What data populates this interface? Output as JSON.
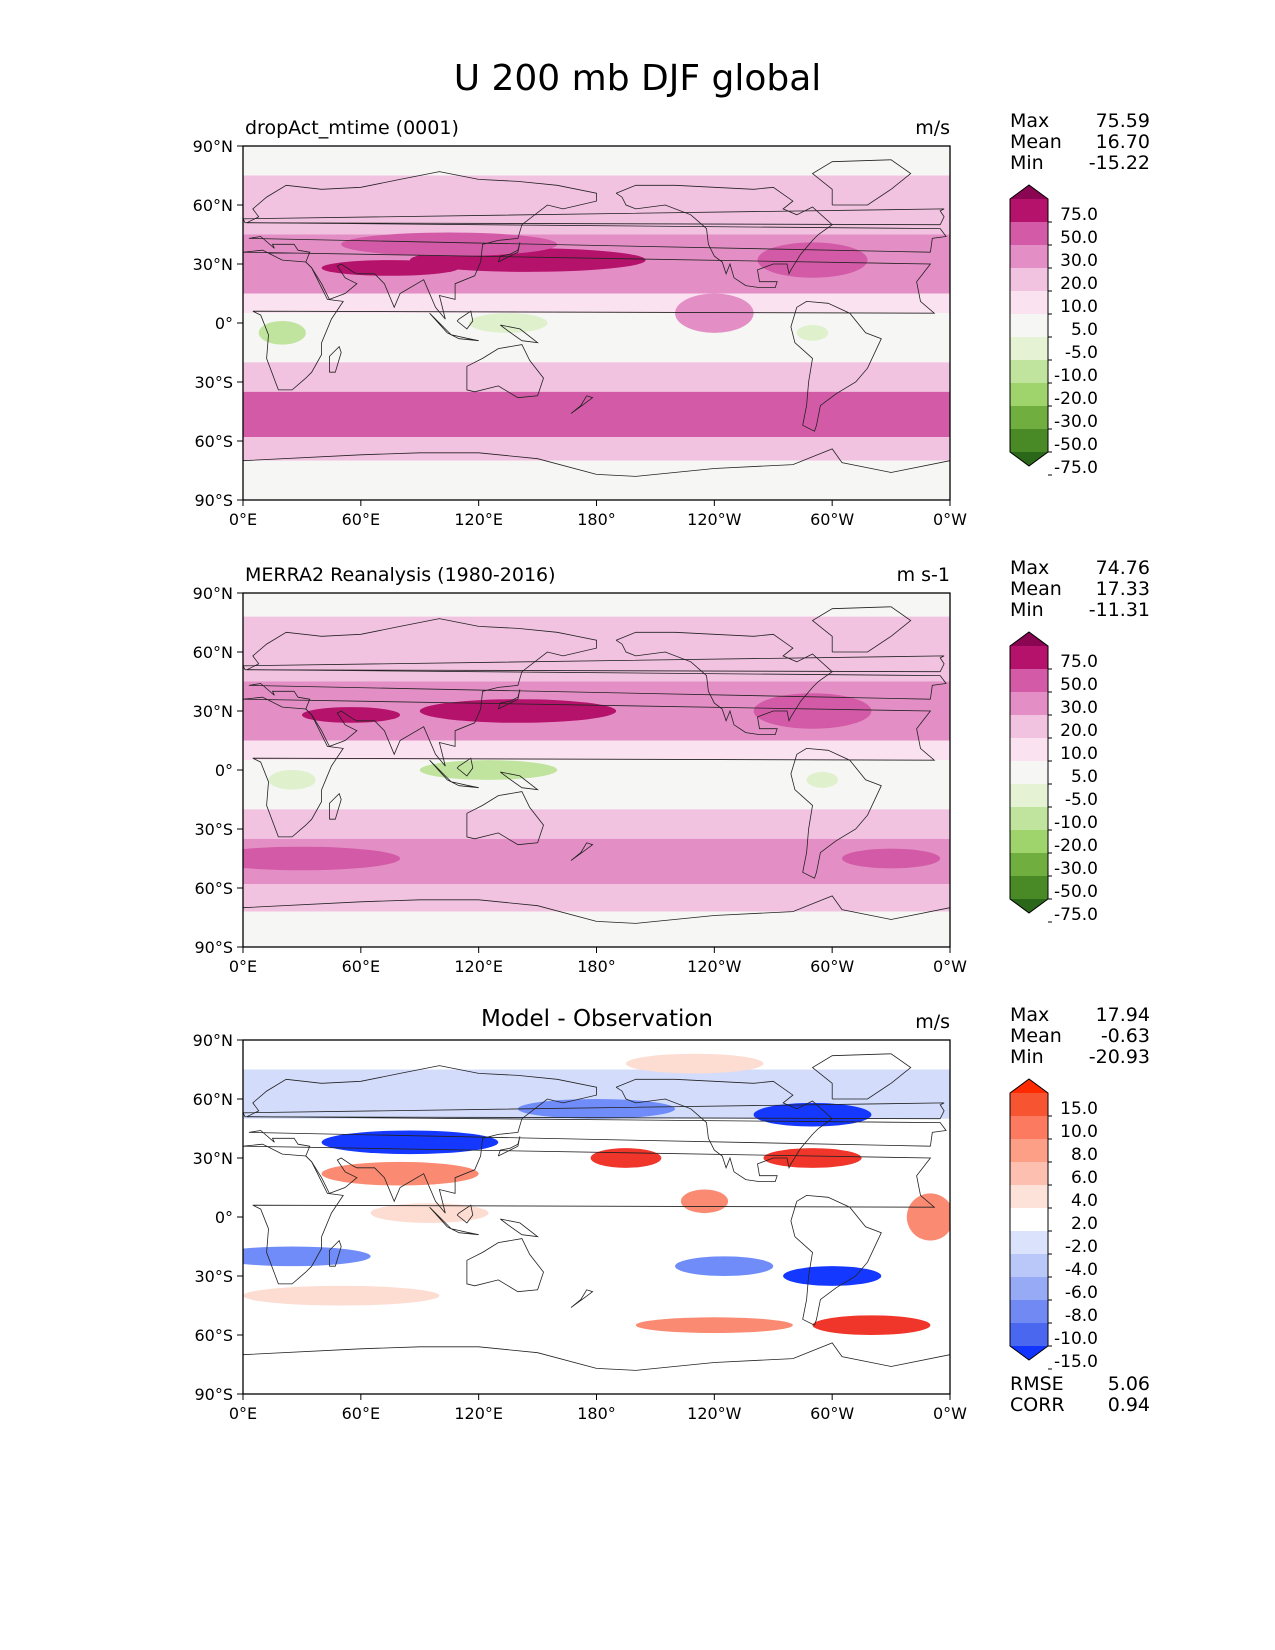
{
  "figure": {
    "title": "U 200 mb DJF global"
  },
  "colors": {
    "jet_strong": "#b5126b",
    "jet_mid": "#d35aa6",
    "jet_light": "#e38fc6",
    "jet_pale": "#f2c2e1",
    "jet_faint": "#fbe2f0",
    "neutral": "#f6f6f4",
    "easterly_light": "#dff0cc",
    "easterly_mid": "#c0e39d",
    "diff_pos_strong": "#f0352a",
    "diff_pos_mid": "#fb8a72",
    "diff_pos_light": "#fddcd2",
    "diff_neg_strong": "#1438ff",
    "diff_neg_mid": "#6f8cf8",
    "diff_neg_light": "#d3dcfb",
    "coast": "#222222"
  },
  "chart_data": [
    {
      "type": "heatmap",
      "id": "model",
      "title": "dropAct_mtime (0001)",
      "units": "m/s",
      "stats": {
        "max_label": "Max",
        "max": "75.59",
        "mean_label": "Mean",
        "mean": "16.70",
        "min_label": "Min",
        "min": "-15.22"
      },
      "x_ticks": [
        "0°E",
        "60°E",
        "120°E",
        "180°",
        "120°W",
        "60°W",
        "0°W"
      ],
      "y_ticks": [
        "90°N",
        "60°N",
        "30°N",
        "0°",
        "30°S",
        "60°S",
        "90°S"
      ],
      "x_range": [
        0,
        360
      ],
      "y_range": [
        -90,
        90
      ],
      "colorbar": {
        "ticks": [
          "75.0",
          "50.0",
          "30.0",
          "20.0",
          "10.0",
          "5.0",
          "-5.0",
          "-10.0",
          "-20.0",
          "-30.0",
          "-50.0",
          "-75.0"
        ],
        "colors": [
          "#8a0653",
          "#b5126b",
          "#d35aa6",
          "#e38fc6",
          "#f2c2e1",
          "#fbe2f0",
          "#f6f6f4",
          "#e5f3d4",
          "#c0e39d",
          "#9fd36c",
          "#6fae3f",
          "#4a8a26",
          "#2a6719"
        ]
      },
      "bands": [
        {
          "lat_min": 75,
          "lat_max": 90,
          "shade": "neutral"
        },
        {
          "lat_min": 45,
          "lat_max": 75,
          "shade": "jet_pale"
        },
        {
          "lat_min": 15,
          "lat_max": 45,
          "shade": "jet_light"
        },
        {
          "lat_min": 5,
          "lat_max": 15,
          "shade": "jet_faint"
        },
        {
          "lat_min": -20,
          "lat_max": 5,
          "shade": "neutral"
        },
        {
          "lat_min": -35,
          "lat_max": -20,
          "shade": "jet_pale"
        },
        {
          "lat_min": -58,
          "lat_max": -35,
          "shade": "jet_mid"
        },
        {
          "lat_min": -70,
          "lat_max": -58,
          "shade": "jet_pale"
        },
        {
          "lat_min": -90,
          "lat_max": -70,
          "shade": "neutral"
        }
      ],
      "blobs": [
        {
          "lon": 145,
          "lat": 32,
          "rx": 60,
          "ry": 6,
          "shade": "jet_strong"
        },
        {
          "lon": 75,
          "lat": 28,
          "rx": 35,
          "ry": 4,
          "shade": "jet_strong"
        },
        {
          "lon": 290,
          "lat": 32,
          "rx": 28,
          "ry": 9,
          "shade": "jet_mid"
        },
        {
          "lon": 240,
          "lat": 5,
          "rx": 20,
          "ry": 10,
          "shade": "jet_light"
        },
        {
          "lon": 105,
          "lat": 40,
          "rx": 55,
          "ry": 6,
          "shade": "jet_mid"
        },
        {
          "lon": 20,
          "lat": -5,
          "rx": 12,
          "ry": 6,
          "shade": "easterly_mid"
        },
        {
          "lon": 135,
          "lat": 0,
          "rx": 20,
          "ry": 5,
          "shade": "easterly_light"
        },
        {
          "lon": 290,
          "lat": -5,
          "rx": 8,
          "ry": 4,
          "shade": "easterly_light"
        },
        {
          "lon": 260,
          "lat": -48,
          "rx": 60,
          "ry": 6,
          "shade": "jet_mid"
        }
      ]
    },
    {
      "type": "heatmap",
      "id": "obs",
      "title": "MERRA2 Reanalysis (1980-2016)",
      "units": "m s-1",
      "stats": {
        "max_label": "Max",
        "max": "74.76",
        "mean_label": "Mean",
        "mean": "17.33",
        "min_label": "Min",
        "min": "-11.31"
      },
      "x_ticks": [
        "0°E",
        "60°E",
        "120°E",
        "180°",
        "120°W",
        "60°W",
        "0°W"
      ],
      "y_ticks": [
        "90°N",
        "60°N",
        "30°N",
        "0°",
        "30°S",
        "60°S",
        "90°S"
      ],
      "x_range": [
        0,
        360
      ],
      "y_range": [
        -90,
        90
      ],
      "colorbar": {
        "ticks": [
          "75.0",
          "50.0",
          "30.0",
          "20.0",
          "10.0",
          "5.0",
          "-5.0",
          "-10.0",
          "-20.0",
          "-30.0",
          "-50.0",
          "-75.0"
        ],
        "colors": [
          "#8a0653",
          "#b5126b",
          "#d35aa6",
          "#e38fc6",
          "#f2c2e1",
          "#fbe2f0",
          "#f6f6f4",
          "#e5f3d4",
          "#c0e39d",
          "#9fd36c",
          "#6fae3f",
          "#4a8a26",
          "#2a6719"
        ]
      },
      "bands": [
        {
          "lat_min": 78,
          "lat_max": 90,
          "shade": "neutral"
        },
        {
          "lat_min": 45,
          "lat_max": 78,
          "shade": "jet_pale"
        },
        {
          "lat_min": 15,
          "lat_max": 45,
          "shade": "jet_light"
        },
        {
          "lat_min": 5,
          "lat_max": 15,
          "shade": "jet_faint"
        },
        {
          "lat_min": -20,
          "lat_max": 5,
          "shade": "neutral"
        },
        {
          "lat_min": -35,
          "lat_max": -20,
          "shade": "jet_pale"
        },
        {
          "lat_min": -58,
          "lat_max": -35,
          "shade": "jet_light"
        },
        {
          "lat_min": -72,
          "lat_max": -58,
          "shade": "jet_pale"
        },
        {
          "lat_min": -90,
          "lat_max": -72,
          "shade": "neutral"
        }
      ],
      "blobs": [
        {
          "lon": 140,
          "lat": 30,
          "rx": 50,
          "ry": 6,
          "shade": "jet_strong"
        },
        {
          "lon": 55,
          "lat": 28,
          "rx": 25,
          "ry": 4,
          "shade": "jet_strong"
        },
        {
          "lon": 290,
          "lat": 30,
          "rx": 30,
          "ry": 9,
          "shade": "jet_mid"
        },
        {
          "lon": 30,
          "lat": -45,
          "rx": 50,
          "ry": 6,
          "shade": "jet_mid"
        },
        {
          "lon": 330,
          "lat": -45,
          "rx": 25,
          "ry": 5,
          "shade": "jet_mid"
        },
        {
          "lon": 25,
          "lat": -5,
          "rx": 12,
          "ry": 5,
          "shade": "easterly_light"
        },
        {
          "lon": 125,
          "lat": 0,
          "rx": 35,
          "ry": 5,
          "shade": "easterly_mid"
        },
        {
          "lon": 295,
          "lat": -5,
          "rx": 8,
          "ry": 4,
          "shade": "easterly_light"
        }
      ]
    },
    {
      "type": "heatmap",
      "id": "diff",
      "title": "Model - Observation",
      "units": "m/s",
      "stats": {
        "max_label": "Max",
        "max": "17.94",
        "mean_label": "Mean",
        "mean": "-0.63",
        "min_label": "Min",
        "min": "-20.93"
      },
      "x_ticks": [
        "0°E",
        "60°E",
        "120°E",
        "180°",
        "120°W",
        "60°W",
        "0°W"
      ],
      "y_ticks": [
        "90°N",
        "60°N",
        "30°N",
        "0°",
        "30°S",
        "60°S",
        "90°S"
      ],
      "x_range": [
        0,
        360
      ],
      "y_range": [
        -90,
        90
      ],
      "colorbar": {
        "ticks": [
          "15.0",
          "10.0",
          "8.0",
          "6.0",
          "4.0",
          "2.0",
          "-2.0",
          "-4.0",
          "-6.0",
          "-8.0",
          "-10.0",
          "-15.0"
        ],
        "colors": [
          "#ff2a00",
          "#f75532",
          "#fb7a60",
          "#fd9e86",
          "#fdc0b0",
          "#fde2da",
          "#ffffff",
          "#dbe2fb",
          "#bac8f9",
          "#97aaf6",
          "#7089f3",
          "#4a67f0",
          "#1234ff"
        ]
      },
      "metrics": {
        "rmse_label": "RMSE",
        "rmse": "5.06",
        "corr_label": "CORR",
        "corr": "0.94"
      },
      "bands": [
        {
          "lat_min": -90,
          "lat_max": 90,
          "shade": "white"
        },
        {
          "lat_min": 50,
          "lat_max": 75,
          "shade": "diff_neg_light"
        }
      ],
      "blobs": [
        {
          "lon": 85,
          "lat": 38,
          "rx": 45,
          "ry": 6,
          "shade": "diff_neg_strong"
        },
        {
          "lon": 180,
          "lat": 55,
          "rx": 40,
          "ry": 5,
          "shade": "diff_neg_mid"
        },
        {
          "lon": 290,
          "lat": 52,
          "rx": 30,
          "ry": 6,
          "shade": "diff_neg_strong"
        },
        {
          "lon": 80,
          "lat": 22,
          "rx": 40,
          "ry": 6,
          "shade": "diff_pos_mid"
        },
        {
          "lon": 195,
          "lat": 30,
          "rx": 18,
          "ry": 5,
          "shade": "diff_pos_strong"
        },
        {
          "lon": 290,
          "lat": 30,
          "rx": 25,
          "ry": 5,
          "shade": "diff_pos_strong"
        },
        {
          "lon": 235,
          "lat": 8,
          "rx": 12,
          "ry": 6,
          "shade": "diff_pos_mid"
        },
        {
          "lon": 95,
          "lat": 2,
          "rx": 30,
          "ry": 5,
          "shade": "diff_pos_light"
        },
        {
          "lon": 25,
          "lat": -20,
          "rx": 40,
          "ry": 5,
          "shade": "diff_neg_mid"
        },
        {
          "lon": 245,
          "lat": -25,
          "rx": 25,
          "ry": 5,
          "shade": "diff_neg_mid"
        },
        {
          "lon": 300,
          "lat": -30,
          "rx": 25,
          "ry": 5,
          "shade": "diff_neg_strong"
        },
        {
          "lon": 50,
          "lat": -40,
          "rx": 50,
          "ry": 5,
          "shade": "diff_pos_light"
        },
        {
          "lon": 240,
          "lat": -55,
          "rx": 40,
          "ry": 4,
          "shade": "diff_pos_mid"
        },
        {
          "lon": 320,
          "lat": -55,
          "rx": 30,
          "ry": 5,
          "shade": "diff_pos_strong"
        },
        {
          "lon": 350,
          "lat": 0,
          "rx": 12,
          "ry": 12,
          "shade": "diff_pos_mid"
        },
        {
          "lon": 230,
          "lat": 78,
          "rx": 35,
          "ry": 5,
          "shade": "diff_pos_light"
        }
      ]
    }
  ]
}
